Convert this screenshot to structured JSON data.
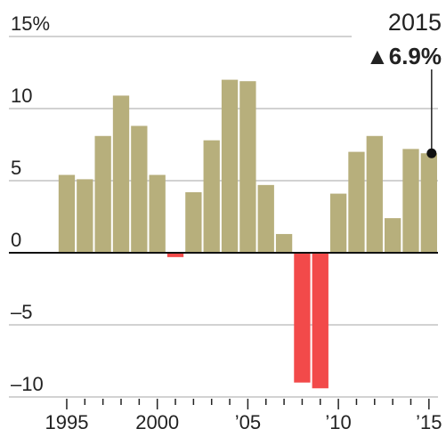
{
  "chart_data": {
    "type": "bar",
    "categories": [
      "1995",
      null,
      null,
      null,
      null,
      "2000",
      null,
      null,
      null,
      null,
      "’05",
      null,
      null,
      null,
      null,
      "’10",
      null,
      null,
      null,
      null,
      "’15"
    ],
    "values": [
      5.4,
      5.1,
      8.1,
      10.9,
      8.8,
      5.4,
      -0.3,
      4.2,
      7.8,
      12.0,
      11.9,
      4.7,
      1.3,
      -9.0,
      -9.4,
      4.1,
      7.0,
      8.1,
      2.4,
      7.2,
      6.9
    ],
    "value_labels": [
      null,
      null,
      null,
      null,
      null,
      null,
      null,
      null,
      null,
      null,
      null,
      null,
      null,
      null,
      null,
      null,
      null,
      null,
      null,
      null,
      "▲6.9%"
    ],
    "annotation_title": "2015",
    "color": "#b7af7c",
    "negative_color": "#f24a4a",
    "ylim": [
      -10,
      15
    ],
    "yticks": [
      {
        "value": -10,
        "label": "–10"
      },
      {
        "value": -5,
        "label": "–5"
      },
      0,
      5,
      10,
      {
        "value": 15,
        "label": "15%"
      }
    ],
    "grid": true
  }
}
